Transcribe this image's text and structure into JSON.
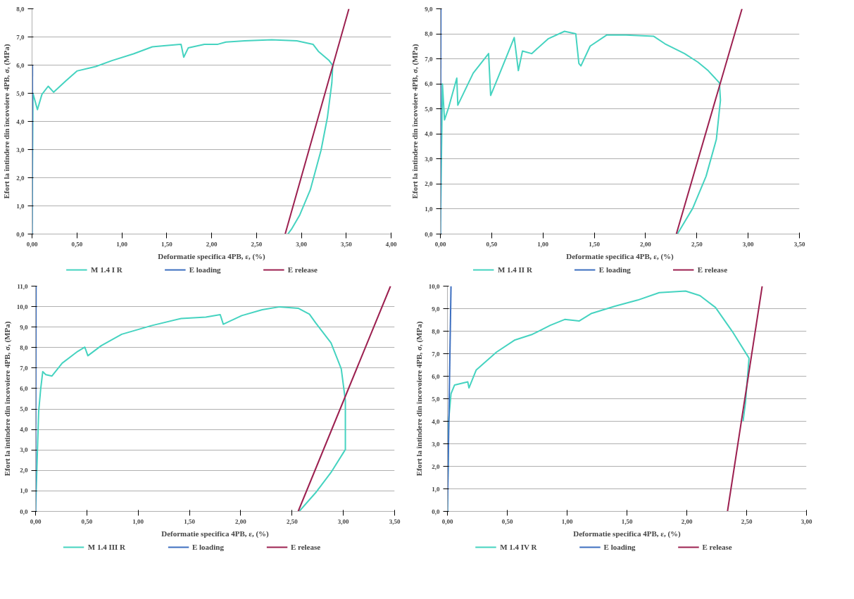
{
  "chart_data": [
    {
      "type": "line",
      "xlabel": "Deformatie specifica 4PB, ε, (%)",
      "ylabel": "Efort la întindere din încovoiere 4PB, σ, (MPa)",
      "xlim": [
        0,
        4
      ],
      "ylim": [
        0,
        8
      ],
      "xticks": [
        {
          "value": 0,
          "label": "0,00"
        },
        {
          "value": 0.5,
          "label": "0,50"
        },
        {
          "value": 1,
          "label": "1,00"
        },
        {
          "value": 1.5,
          "label": "1,50"
        },
        {
          "value": 2,
          "label": "2,00"
        },
        {
          "value": 2.5,
          "label": "2,50"
        },
        {
          "value": 3,
          "label": "3,00"
        },
        {
          "value": 3.5,
          "label": "3,50"
        },
        {
          "value": 4,
          "label": "4,00"
        }
      ],
      "yticks": [
        {
          "value": 0,
          "label": "0,0"
        },
        {
          "value": 1,
          "label": "1,0"
        },
        {
          "value": 2,
          "label": "2,0"
        },
        {
          "value": 3,
          "label": "3,0"
        },
        {
          "value": 4,
          "label": "4,0"
        },
        {
          "value": 5,
          "label": "5,0"
        },
        {
          "value": 6,
          "label": "6,0"
        },
        {
          "value": 7,
          "label": "7,0"
        },
        {
          "value": 8,
          "label": "8,0"
        }
      ],
      "grid": "y",
      "legend": "bottom",
      "line_style": "solid",
      "series": [
        {
          "name": "M 1.4 I R",
          "color": "#45d3c0",
          "x": [
            0,
            0.01,
            0.06,
            0.11,
            0.18,
            0.24,
            0.38,
            0.5,
            0.71,
            0.89,
            1.13,
            1.34,
            1.47,
            1.66,
            1.69,
            1.74,
            1.92,
            2.07,
            2.16,
            2.37,
            2.67,
            2.95,
            3.13,
            3.19,
            3.31,
            3.35,
            3.34,
            3.29,
            3.22,
            3.1,
            2.98,
            2.89,
            2.85
          ],
          "values": [
            0,
            5.0,
            4.42,
            4.96,
            5.25,
            5.04,
            5.45,
            5.79,
            5.95,
            6.16,
            6.4,
            6.65,
            6.69,
            6.74,
            6.28,
            6.61,
            6.74,
            6.74,
            6.82,
            6.86,
            6.9,
            6.86,
            6.74,
            6.49,
            6.16,
            5.99,
            5.37,
            4.13,
            2.98,
            1.57,
            0.66,
            0.17,
            0
          ]
        },
        {
          "name": "E loading",
          "color": "#3d6fc0",
          "x": [
            0,
            0.005
          ],
          "values": [
            0,
            6.0
          ]
        },
        {
          "name": "E release",
          "color": "#9c2050",
          "x": [
            2.82,
            3.53
          ],
          "values": [
            0,
            8.0
          ]
        }
      ]
    },
    {
      "type": "line",
      "xlabel": "Deformatie specifica 4PB, ε, (%)",
      "ylabel": "Efort la întindere din încovoiere 4PB, σ, (MPa)",
      "xlim": [
        0,
        3.5
      ],
      "ylim": [
        0,
        9
      ],
      "xticks": [
        {
          "value": 0,
          "label": "0,00"
        },
        {
          "value": 0.5,
          "label": "0,50"
        },
        {
          "value": 1,
          "label": "1,00"
        },
        {
          "value": 1.5,
          "label": "1,50"
        },
        {
          "value": 2,
          "label": "2,00"
        },
        {
          "value": 2.5,
          "label": "2,50"
        },
        {
          "value": 3,
          "label": "3,00"
        },
        {
          "value": 3.5,
          "label": "3,50"
        }
      ],
      "yticks": [
        {
          "value": 0,
          "label": "0,0"
        },
        {
          "value": 1,
          "label": "1,0"
        },
        {
          "value": 2,
          "label": "2,0"
        },
        {
          "value": 3,
          "label": "3,0"
        },
        {
          "value": 4,
          "label": "4,0"
        },
        {
          "value": 5,
          "label": "5,0"
        },
        {
          "value": 6,
          "label": "6,0"
        },
        {
          "value": 7,
          "label": "7,0"
        },
        {
          "value": 8,
          "label": "8,0"
        },
        {
          "value": 9,
          "label": "9,0"
        }
      ],
      "grid": "y",
      "legend": "bottom",
      "line_style": "solid",
      "series": [
        {
          "name": "M 1.4 II R",
          "color": "#45d3c0",
          "x": [
            0,
            0.02,
            0.04,
            0.08,
            0.16,
            0.17,
            0.32,
            0.47,
            0.49,
            0.56,
            0.72,
            0.76,
            0.8,
            0.89,
            1.05,
            1.21,
            1.32,
            1.35,
            1.37,
            1.46,
            1.62,
            1.81,
            2.08,
            2.19,
            2.38,
            2.51,
            2.61,
            2.72,
            2.73,
            2.69,
            2.59,
            2.46,
            2.31
          ],
          "values": [
            0,
            6.0,
            4.56,
            5.05,
            6.23,
            5.15,
            6.43,
            7.21,
            5.54,
            6.23,
            7.85,
            6.53,
            7.31,
            7.21,
            7.8,
            8.1,
            8.0,
            6.82,
            6.72,
            7.51,
            7.95,
            7.95,
            7.9,
            7.6,
            7.21,
            6.87,
            6.53,
            6.04,
            5.35,
            3.78,
            2.31,
            1.03,
            0
          ]
        },
        {
          "name": "E loading",
          "color": "#3d6fc0",
          "x": [
            0,
            0.005
          ],
          "values": [
            0,
            9.0
          ]
        },
        {
          "name": "E release",
          "color": "#9c2050",
          "x": [
            2.3,
            2.94
          ],
          "values": [
            0,
            9.0
          ]
        }
      ]
    },
    {
      "type": "line",
      "xlabel": "Deformatie specifica 4PB, ε, (%)",
      "ylabel": "Efort la întindere din încovoiere 4PB, σ, (MPa)",
      "xlim": [
        0,
        3.5
      ],
      "ylim": [
        0,
        11
      ],
      "xticks": [
        {
          "value": 0,
          "label": "0,00"
        },
        {
          "value": 0.5,
          "label": "0,50"
        },
        {
          "value": 1,
          "label": "1,00"
        },
        {
          "value": 1.5,
          "label": "1,50"
        },
        {
          "value": 2,
          "label": "2,00"
        },
        {
          "value": 2.5,
          "label": "2,50"
        },
        {
          "value": 3,
          "label": "3,00"
        },
        {
          "value": 3.5,
          "label": "3,50"
        }
      ],
      "yticks": [
        {
          "value": 0,
          "label": "0,0"
        },
        {
          "value": 1,
          "label": "1,0"
        },
        {
          "value": 2,
          "label": "2,0"
        },
        {
          "value": 3,
          "label": "3,0"
        },
        {
          "value": 4,
          "label": "4,0"
        },
        {
          "value": 5,
          "label": "5,0"
        },
        {
          "value": 6,
          "label": "6,0"
        },
        {
          "value": 7,
          "label": "7,0"
        },
        {
          "value": 8,
          "label": "8,0"
        },
        {
          "value": 9,
          "label": "9,0"
        },
        {
          "value": 10,
          "label": "10,0"
        },
        {
          "value": 11,
          "label": "11,0"
        }
      ],
      "grid": "y",
      "legend": "bottom",
      "line_style": "solid",
      "series": [
        {
          "name": "M 1.4 III R",
          "color": "#45d3c0",
          "x": [
            0,
            0.03,
            0.05,
            0.07,
            0.1,
            0.16,
            0.26,
            0.41,
            0.48,
            0.51,
            0.64,
            0.84,
            1.13,
            1.42,
            1.66,
            1.8,
            1.83,
            2.01,
            2.21,
            2.38,
            2.56,
            2.67,
            2.73,
            2.88,
            2.98,
            3.02,
            3.02,
            2.88,
            2.73,
            2.57
          ],
          "values": [
            0,
            4.85,
            5.98,
            6.82,
            6.68,
            6.61,
            7.24,
            7.81,
            8.02,
            7.6,
            8.09,
            8.65,
            9.07,
            9.42,
            9.49,
            9.61,
            9.14,
            9.56,
            9.85,
            9.99,
            9.92,
            9.63,
            9.21,
            8.23,
            6.96,
            5.41,
            3.02,
            1.9,
            0.91,
            0
          ]
        },
        {
          "name": "E loading",
          "color": "#3d6fc0",
          "x": [
            0,
            0.005
          ],
          "values": [
            0,
            11.0
          ]
        },
        {
          "name": "E release",
          "color": "#9c2050",
          "x": [
            2.56,
            3.46
          ],
          "values": [
            0,
            11.0
          ]
        }
      ]
    },
    {
      "type": "line",
      "xlabel": "Deformatie specifica 4PB, ε, (%)",
      "ylabel": "Efort la întindere din încovoiere 4PB, σ, (MPa)",
      "xlim": [
        0,
        3
      ],
      "ylim": [
        0,
        10
      ],
      "xticks": [
        {
          "value": 0,
          "label": "0,00"
        },
        {
          "value": 0.5,
          "label": "0,50"
        },
        {
          "value": 1,
          "label": "1,00"
        },
        {
          "value": 1.5,
          "label": "1,50"
        },
        {
          "value": 2,
          "label": "2,00"
        },
        {
          "value": 2.5,
          "label": "2,50"
        },
        {
          "value": 3,
          "label": "3,00"
        }
      ],
      "yticks": [
        {
          "value": 0,
          "label": "0,0"
        },
        {
          "value": 1,
          "label": "1,0"
        },
        {
          "value": 2,
          "label": "2,0"
        },
        {
          "value": 3,
          "label": "3,0"
        },
        {
          "value": 4,
          "label": "4,0"
        },
        {
          "value": 5,
          "label": "5,0"
        },
        {
          "value": 6,
          "label": "6,0"
        },
        {
          "value": 7,
          "label": "7,0"
        },
        {
          "value": 8,
          "label": "8,0"
        },
        {
          "value": 9,
          "label": "9,0"
        },
        {
          "value": 10,
          "label": "10,0"
        }
      ],
      "grid": "y",
      "legend": "bottom",
      "line_style": "solid",
      "series": [
        {
          "name": "M 1.4 IV R",
          "color": "#45d3c0",
          "x": [
            0,
            0.01,
            0.03,
            0.06,
            0.17,
            0.18,
            0.24,
            0.31,
            0.41,
            0.56,
            0.71,
            0.86,
            0.98,
            1.1,
            1.2,
            1.4,
            1.59,
            1.77,
            1.99,
            2.11,
            2.24,
            2.38,
            2.52,
            2.49,
            2.47
          ],
          "values": [
            0,
            4.03,
            5.22,
            5.61,
            5.75,
            5.48,
            6.27,
            6.6,
            7.07,
            7.6,
            7.86,
            8.26,
            8.52,
            8.45,
            8.78,
            9.11,
            9.38,
            9.71,
            9.78,
            9.58,
            9.05,
            7.99,
            6.8,
            4.82,
            4.0
          ]
        },
        {
          "name": "E loading",
          "color": "#3d6fc0",
          "x": [
            0,
            0.03
          ],
          "values": [
            0,
            10.0
          ]
        },
        {
          "name": "E release",
          "color": "#9c2050",
          "x": [
            2.34,
            2.63
          ],
          "values": [
            0,
            10.0
          ]
        }
      ]
    }
  ]
}
